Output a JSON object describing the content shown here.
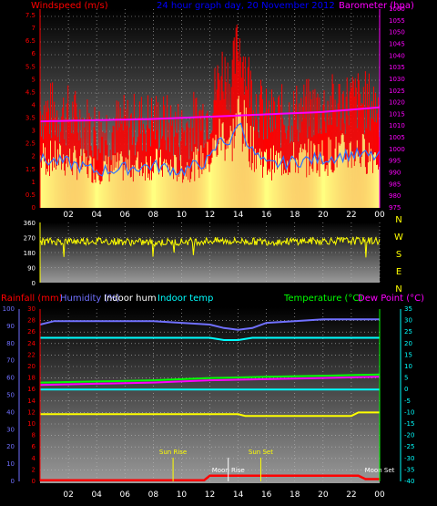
{
  "chart_data": [
    {
      "type": "line",
      "title": "24 hour graph day, 20 November 2012",
      "left_axis_label": "Windspeed (m/s)",
      "right_axis_label": "Barometer (hpa)",
      "x_ticks": [
        "02",
        "04",
        "06",
        "08",
        "10",
        "12",
        "14",
        "16",
        "18",
        "20",
        "22",
        "00"
      ],
      "left_ticks": [
        "0",
        "0.5",
        "1",
        "1.5",
        "2",
        "2.5",
        "3",
        "3.5",
        "4",
        "4.5",
        "5",
        "5.5",
        "6",
        "6.5",
        "7",
        "7.5"
      ],
      "left_ylim": [
        0,
        7.75
      ],
      "right_ticks": [
        "975",
        "980",
        "985",
        "990",
        "995",
        "1000",
        "1005",
        "1010",
        "1015",
        "1020",
        "1025",
        "1030",
        "1035",
        "1040",
        "1045",
        "1050",
        "1055",
        "1060"
      ],
      "right_ylim": [
        975,
        1060
      ],
      "grid": true,
      "series": [
        {
          "name": "Windspeed (m/s)",
          "color": "#ff0000",
          "x": [
            0,
            2,
            4,
            6,
            8,
            10,
            12,
            12.8,
            13.5,
            14,
            15,
            16,
            18,
            20,
            22,
            24
          ],
          "values": [
            3.4,
            3.2,
            2.6,
            2.8,
            3.0,
            2.6,
            3.4,
            5.0,
            4.5,
            6.2,
            4.0,
            3.0,
            3.3,
            3.5,
            3.8,
            3.6
          ]
        },
        {
          "name": "Barometer (hpa)",
          "color": "#ff00ff",
          "x": [
            0,
            4,
            8,
            12,
            16,
            20,
            24
          ],
          "values": [
            1012,
            1012.5,
            1013,
            1014,
            1015,
            1016,
            1018
          ]
        }
      ],
      "gust_color": "#ffff80",
      "average_color": "#3070ff"
    },
    {
      "type": "line",
      "right_labels": [
        "N",
        "W",
        "S",
        "E",
        "N"
      ],
      "left_ticks": [
        "0",
        "90",
        "180",
        "270",
        "360"
      ],
      "ylim": [
        0,
        360
      ],
      "series": [
        {
          "name": "Wind direction",
          "color": "#ffff00",
          "x": [
            0,
            4,
            8,
            12,
            16,
            20,
            24
          ],
          "values": [
            245,
            250,
            240,
            250,
            245,
            250,
            250
          ]
        }
      ]
    },
    {
      "type": "line",
      "x_ticks": [
        "02",
        "04",
        "06",
        "08",
        "10",
        "12",
        "14",
        "16",
        "18",
        "20",
        "22",
        "00"
      ],
      "legend_left": [
        {
          "label": "Rainfall (mm)",
          "color": "#ff0000"
        },
        {
          "label": "Humidity (%)",
          "color": "#7070ff"
        },
        {
          "label": "Indoor hum",
          "color": "#ffffff"
        },
        {
          "label": "Indoor temp",
          "color": "#00ffff"
        }
      ],
      "legend_right": [
        {
          "label": "Temperature (°C)",
          "color": "#00ff00"
        },
        {
          "label": "Dew Point (°C)",
          "color": "#ff00ff"
        }
      ],
      "humidity_ticks": [
        "0",
        "10",
        "20",
        "30",
        "40",
        "50",
        "60",
        "70",
        "80",
        "90",
        "100"
      ],
      "rain_ticks": [
        "0",
        "2",
        "4",
        "6",
        "8",
        "10",
        "12",
        "14",
        "16",
        "18",
        "20",
        "22",
        "24",
        "26",
        "28",
        "30"
      ],
      "temp_ticks": [
        "-40",
        "-35",
        "-30",
        "-25",
        "-20",
        "-15",
        "-10",
        "-5",
        "0",
        "5",
        "10",
        "15",
        "20",
        "25",
        "30",
        "35"
      ],
      "temp_ylim": [
        -40,
        35
      ],
      "grid": true,
      "series": [
        {
          "name": "Humidity (%)",
          "color": "#7070ff",
          "axis": "humidity",
          "x": [
            0,
            1,
            4,
            8,
            10,
            12,
            13,
            14,
            15,
            16,
            18,
            20,
            22,
            24
          ],
          "values": [
            91,
            93,
            93,
            93,
            92,
            91,
            89,
            88,
            89,
            92,
            93,
            94,
            94,
            94
          ]
        },
        {
          "name": "Indoor temp",
          "color": "#00ffff",
          "axis": "temp",
          "x": [
            0,
            12,
            13,
            14,
            15,
            24
          ],
          "values": [
            22.5,
            22.5,
            21.5,
            21.5,
            22.5,
            22.5
          ]
        },
        {
          "name": "Temperature (°C)",
          "color": "#00ff00",
          "axis": "temp",
          "x": [
            0,
            4,
            8,
            12,
            16,
            20,
            24
          ],
          "values": [
            3.0,
            3.5,
            4.0,
            5.0,
            5.5,
            6.0,
            6.5
          ]
        },
        {
          "name": "Dew Point (°C)",
          "color": "#ff00ff",
          "axis": "temp",
          "x": [
            0,
            4,
            8,
            12,
            16,
            20,
            24
          ],
          "values": [
            2.0,
            2.5,
            3.0,
            4.0,
            4.5,
            5.0,
            5.5
          ]
        },
        {
          "name": "Indoor hum",
          "color": "#ffff00",
          "axis": "humidity",
          "x": [
            0,
            14,
            14.5,
            16,
            22,
            22.5,
            24
          ],
          "values": [
            39,
            39,
            38,
            38,
            38,
            40,
            40
          ]
        },
        {
          "name": "Rainfall (mm)",
          "color": "#ff0000",
          "axis": "rain",
          "x": [
            0,
            11.6,
            12,
            22.5,
            23,
            24
          ],
          "values": [
            0.2,
            0.2,
            1.0,
            1.0,
            0.4,
            0.4
          ]
        },
        {
          "name": "Indoor temp floor",
          "color": "#00ffff",
          "axis": "temp",
          "x": [
            0,
            24
          ],
          "values": [
            0,
            0
          ]
        }
      ],
      "events": [
        {
          "label": "Sun Rise",
          "hour": 9.4,
          "color": "#ffff00"
        },
        {
          "label": "Sun Set",
          "hour": 15.6,
          "color": "#ffff00"
        },
        {
          "label": "Moon Rise",
          "hour": 13.3,
          "color": "#ffffff"
        },
        {
          "label": "Moon Set",
          "hour": 24.0,
          "color": "#ffffff"
        }
      ]
    }
  ]
}
